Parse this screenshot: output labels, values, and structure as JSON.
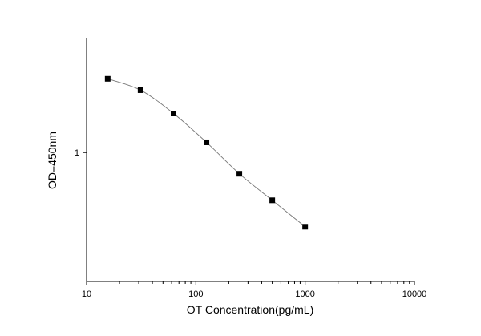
{
  "chart_data": {
    "type": "scatter",
    "title": "",
    "xlabel": "OT Concentration(pg/mL)",
    "ylabel": "OD=450nm",
    "xscale": "log",
    "yscale": "log",
    "xlim": [
      10,
      10000
    ],
    "ylim": [
      0.3,
      2.9
    ],
    "x_ticks": [
      10,
      100,
      1000,
      10000
    ],
    "x_tick_labels": [
      "10",
      "100",
      "1000",
      "10000"
    ],
    "y_ticks": [
      1
    ],
    "y_tick_labels": [
      "1"
    ],
    "grid": false,
    "series": [
      {
        "name": "OD",
        "x": [
          15.6,
          31.2,
          62.5,
          125,
          250,
          500,
          1000
        ],
        "y": [
          1.99,
          1.79,
          1.44,
          1.1,
          0.82,
          0.64,
          0.5
        ],
        "marker": "square",
        "line": "smooth",
        "color": "#000000",
        "line_color": "#777777"
      }
    ]
  }
}
